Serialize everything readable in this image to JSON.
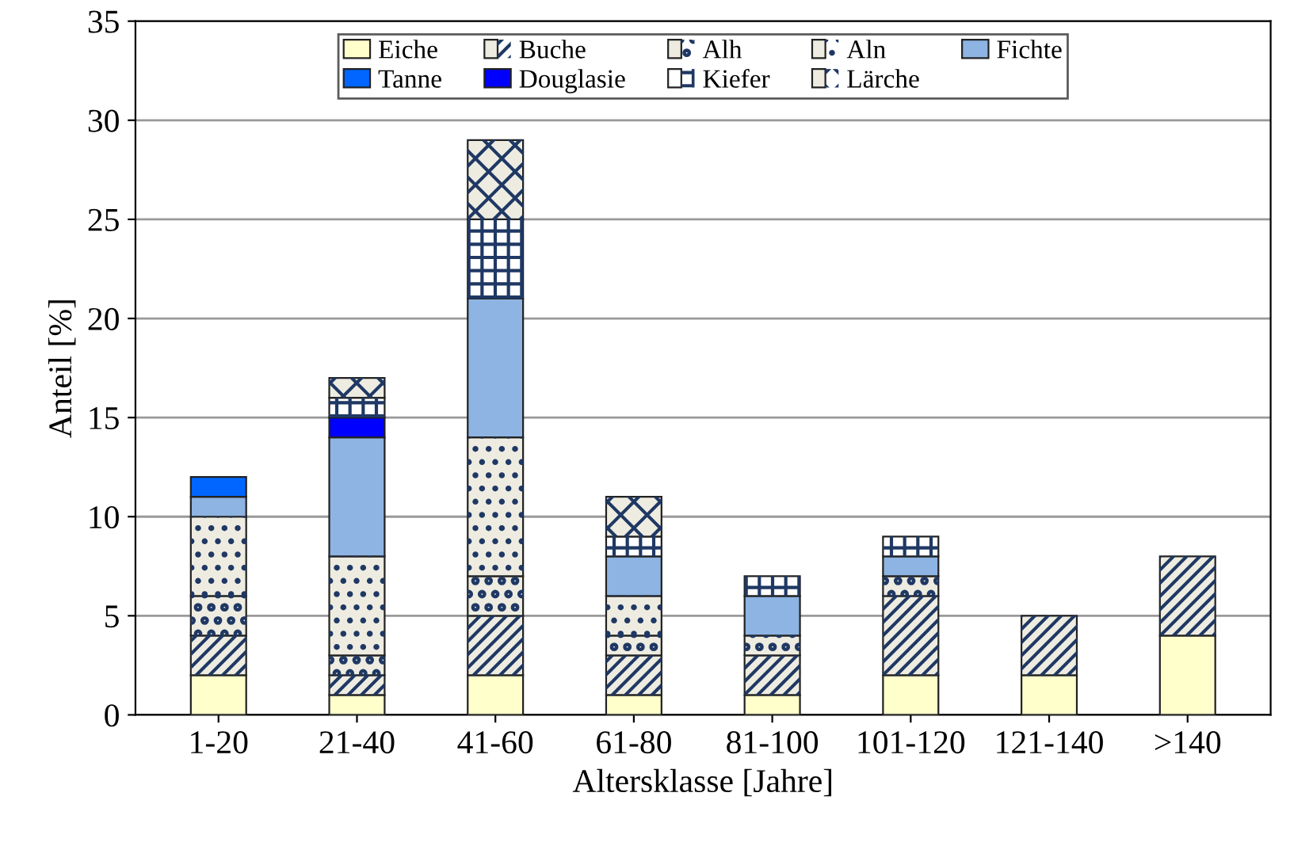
{
  "chart_data": {
    "type": "bar",
    "stacked": true,
    "xlabel": "Altersklasse [Jahre]",
    "ylabel": "Anteil [%]",
    "categories": [
      "1-20",
      "21-40",
      "41-60",
      "61-80",
      "81-100",
      "101-120",
      "121-140",
      ">140"
    ],
    "series": [
      {
        "name": "Eiche",
        "color": "#ffffcc",
        "values": [
          2,
          1,
          2,
          1,
          1,
          2,
          2,
          4
        ]
      },
      {
        "name": "Buche",
        "color": "#eeece1",
        "values": [
          2,
          1,
          3,
          2,
          2,
          4,
          3,
          4
        ]
      },
      {
        "name": "Alh",
        "color": "#eeece1",
        "values": [
          2,
          1,
          2,
          1,
          1,
          1,
          0,
          0
        ]
      },
      {
        "name": "Aln",
        "color": "#eeece1",
        "values": [
          4,
          5,
          7,
          2,
          0,
          0,
          0,
          0
        ]
      },
      {
        "name": "Fichte",
        "color": "#8db4e2",
        "values": [
          1,
          6,
          7,
          2,
          2,
          1,
          0,
          0
        ]
      },
      {
        "name": "Tanne",
        "color": "#0066ff",
        "values": [
          1,
          0,
          0,
          0,
          0,
          0,
          0,
          0
        ]
      },
      {
        "name": "Douglasie",
        "color": "#0000ff",
        "values": [
          0,
          1,
          0,
          0,
          0,
          0,
          0,
          0
        ]
      },
      {
        "name": "Kiefer",
        "color": "#ffffff",
        "values": [
          0,
          1,
          4,
          1,
          1,
          1,
          0,
          0
        ]
      },
      {
        "name": "Lärche",
        "color": "#eeece1",
        "values": [
          0,
          1,
          4,
          2,
          0,
          0,
          0,
          0
        ]
      }
    ],
    "ylim": [
      0,
      35
    ],
    "yticks": [
      0,
      5,
      10,
      15,
      20,
      25,
      30,
      35
    ],
    "grid": "y",
    "legend": "top"
  }
}
